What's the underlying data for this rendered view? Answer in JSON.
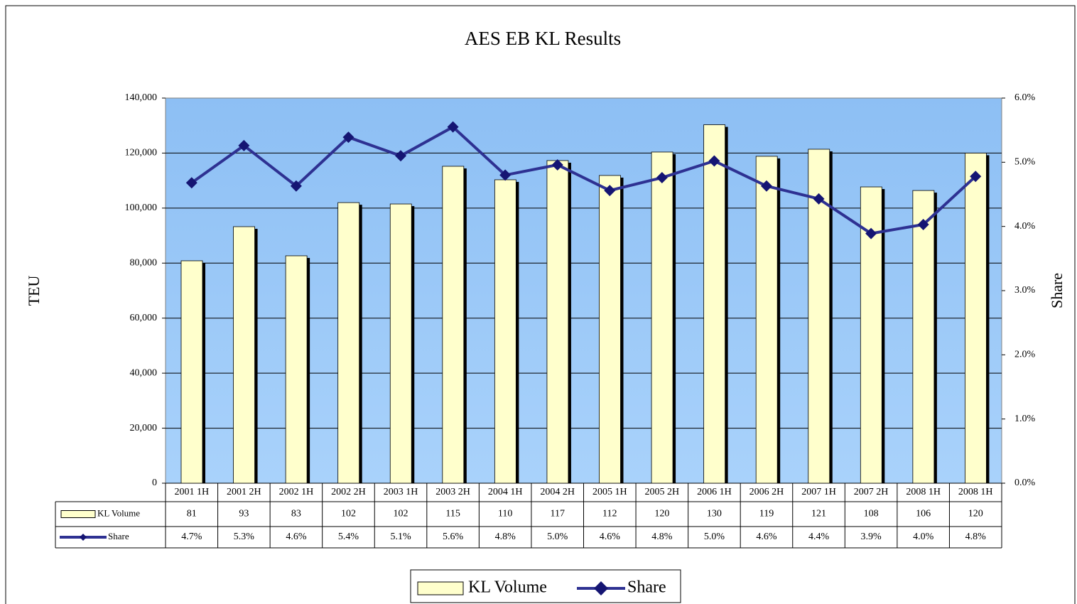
{
  "chart_data": {
    "type": "bar",
    "title": "AES EB KL Results",
    "categories": [
      "2001 1H",
      "2001 2H",
      "2002 1H",
      "2002 2H",
      "2003 1H",
      "2003 2H",
      "2004 1H",
      "2004 2H",
      "2005 1H",
      "2005 2H",
      "2006 1H",
      "2006 2H",
      "2007 1H",
      "2007 2H",
      "2008 1H",
      "2008 1H"
    ],
    "series": [
      {
        "name": "KL Volume",
        "type": "bar",
        "color": "#ffffcc",
        "axis": "y",
        "values": [
          80850,
          93250,
          82660,
          102000,
          101500,
          115200,
          110300,
          117280,
          111860,
          120380,
          130300,
          118830,
          121400,
          107700,
          106400,
          120000
        ],
        "value_labels": [
          "81",
          "93",
          "83",
          "102",
          "102",
          "115",
          "110",
          "117",
          "112",
          "120",
          "130",
          "119",
          "121",
          "108",
          "106",
          "120"
        ]
      },
      {
        "name": "Share",
        "type": "line",
        "color": "#2e3192",
        "axis": "y2",
        "values": [
          4.68,
          5.26,
          4.63,
          5.39,
          5.1,
          5.55,
          4.8,
          4.96,
          4.56,
          4.76,
          5.02,
          4.63,
          4.43,
          3.89,
          4.03,
          4.78
        ],
        "value_labels": [
          "4.7%",
          "5.3%",
          "4.6%",
          "5.4%",
          "5.1%",
          "5.6%",
          "4.8%",
          "5.0%",
          "4.6%",
          "4.8%",
          "5.0%",
          "4.6%",
          "4.4%",
          "3.9%",
          "4.0%",
          "4.8%"
        ]
      }
    ],
    "y_label": "TEU",
    "y2_label": "Share",
    "ylim": [
      0,
      140000
    ],
    "yticks": [
      0,
      {
        "value": 20000,
        "label": "20,000"
      },
      {
        "value": 40000,
        "label": "40,000"
      },
      {
        "value": 60000,
        "label": "60,000"
      },
      {
        "value": 80000,
        "label": "80,000"
      },
      {
        "value": 100000,
        "label": "100,000"
      },
      {
        "value": 120000,
        "label": "120,000"
      },
      {
        "value": 140000,
        "label": "140,000"
      }
    ],
    "y2lim": [
      0,
      6
    ],
    "y2ticks": [
      {
        "value": 0,
        "label": "0.0%"
      },
      {
        "value": 1,
        "label": "1.0%"
      },
      {
        "value": 2,
        "label": "2.0%"
      },
      {
        "value": 3,
        "label": "3.0%"
      },
      {
        "value": 4,
        "label": "4.0%"
      },
      {
        "value": 5,
        "label": "5.0%"
      },
      {
        "value": 6,
        "label": "6.0%"
      }
    ],
    "grid": true,
    "legend": "bottom"
  }
}
